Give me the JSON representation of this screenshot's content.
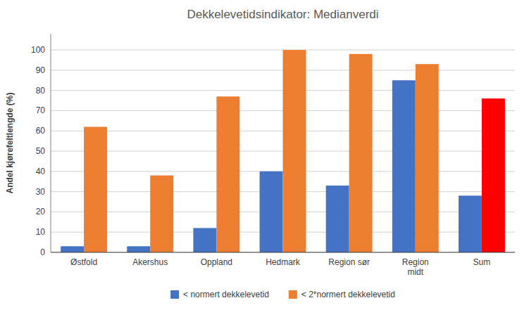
{
  "chart_data": {
    "type": "bar",
    "title": "Dekkelevetidsindikator: Medianverdi",
    "ylabel": "Andel kjørefeltlengde (%)",
    "categories": [
      "Østfold",
      "Akershus",
      "Oppland",
      "Hedmark",
      "Region sør",
      "Region\nmidt",
      "Sum"
    ],
    "series": [
      {
        "name": "< normert dekkelevetid",
        "color": "#4472C4",
        "values": [
          3,
          3,
          12,
          40,
          33,
          85,
          28
        ]
      },
      {
        "name": "< 2*normert dekkelevetid",
        "color": "#ED7D31",
        "colors": [
          "#ED7D31",
          "#ED7D31",
          "#ED7D31",
          "#ED7D31",
          "#ED7D31",
          "#ED7D31",
          "#FF0000"
        ],
        "values": [
          62,
          38,
          77,
          100,
          98,
          93,
          76
        ]
      }
    ],
    "ylim": [
      0,
      108
    ],
    "yticks": [
      0,
      10,
      20,
      30,
      40,
      50,
      60,
      70,
      80,
      90,
      100
    ],
    "grid": true,
    "legend": "bottom"
  }
}
